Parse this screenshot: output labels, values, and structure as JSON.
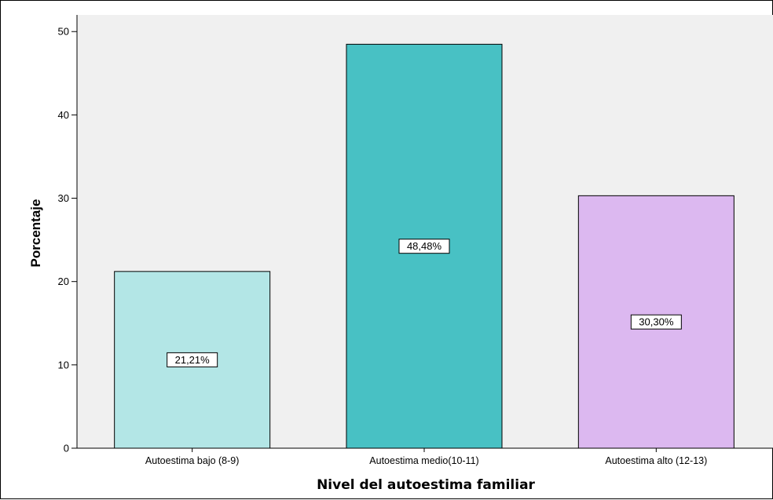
{
  "chart_data": {
    "type": "bar",
    "title": "",
    "xlabel": "Nivel del autoestima familiar",
    "ylabel": "Porcentaje",
    "categories": [
      "Autoestima bajo (8-9)",
      "Autoestima medio(10-11)",
      "Autoestima alto (12-13)"
    ],
    "values": [
      21.21,
      48.48,
      30.3
    ],
    "data_labels": [
      "21,21%",
      "48,48%",
      "30,30%"
    ],
    "bar_colors": [
      "#b3e6e6",
      "#48c1c4",
      "#dcb8f0"
    ],
    "ylim": [
      0,
      52
    ],
    "yticks": [
      0,
      10,
      20,
      30,
      40,
      50
    ],
    "grid": false,
    "plot_background": "#f0f0f0"
  }
}
